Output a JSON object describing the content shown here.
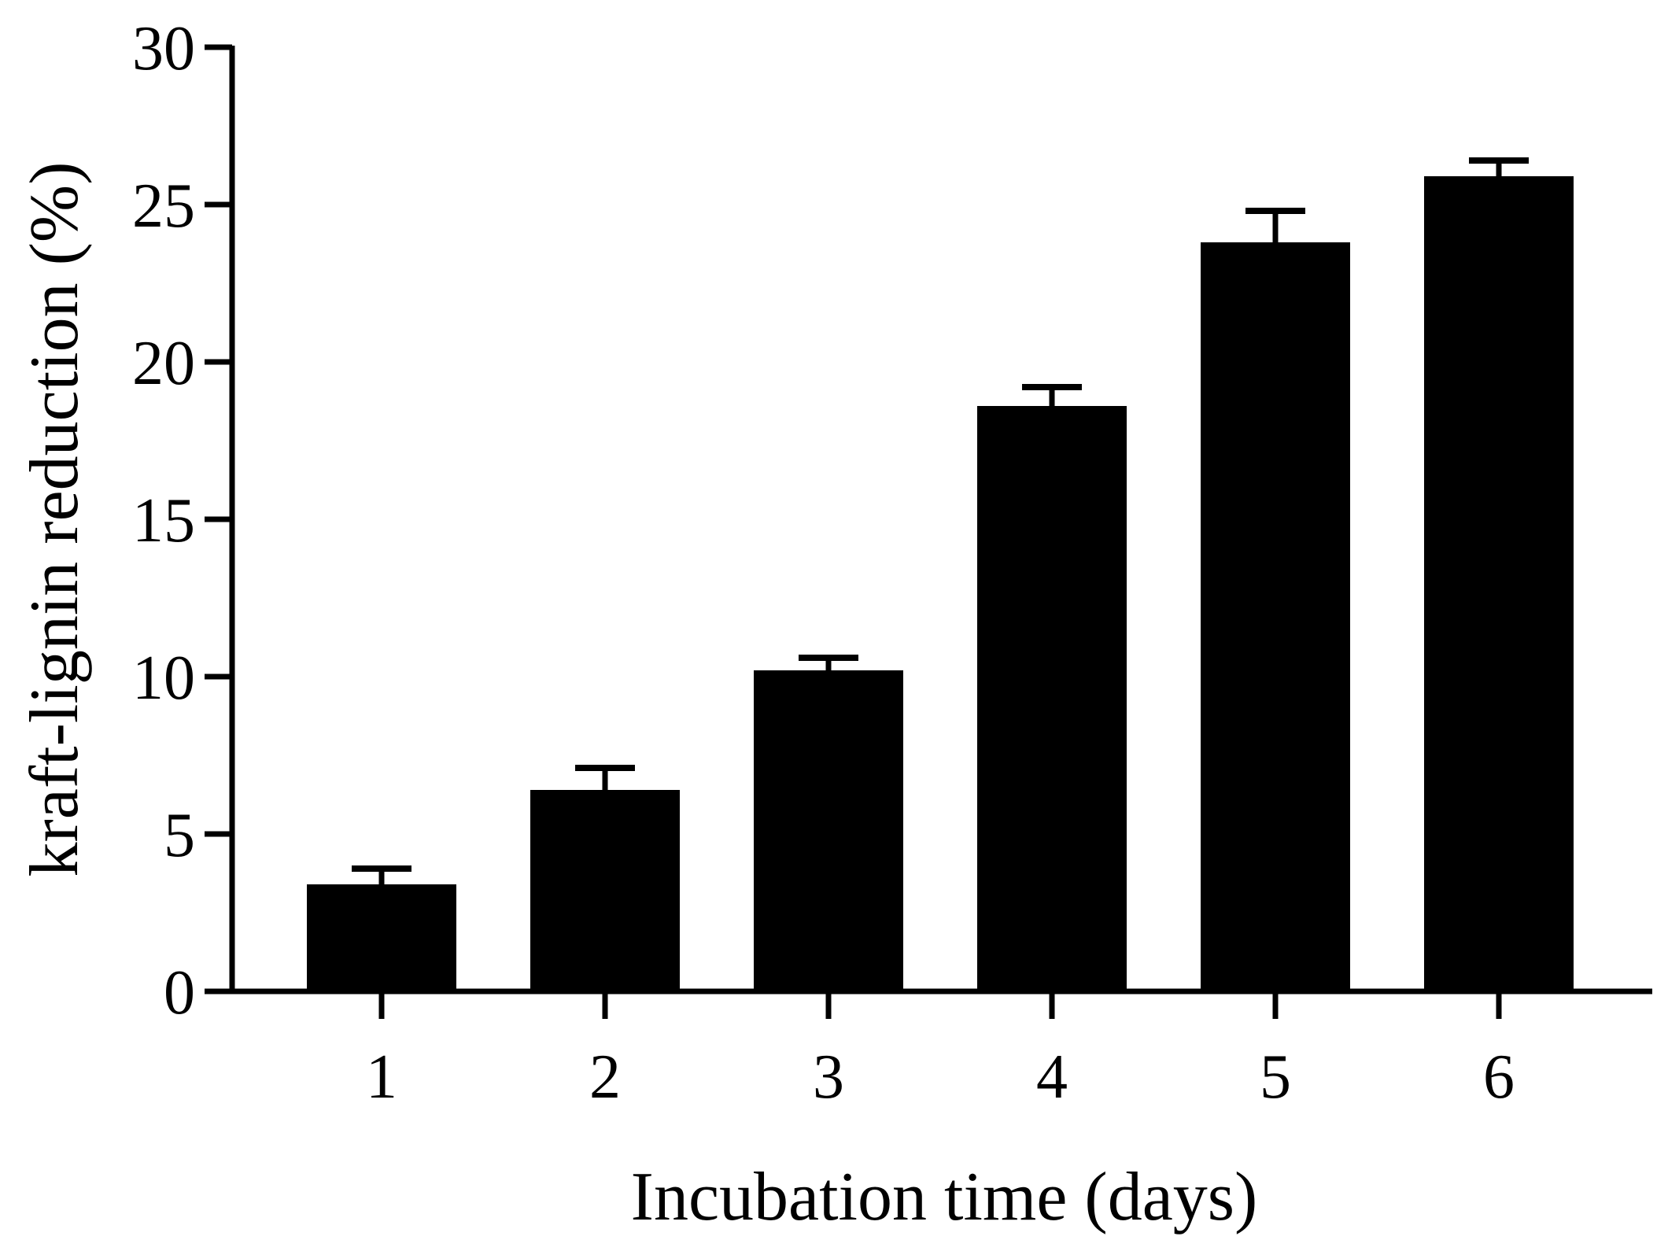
{
  "chart_data": {
    "type": "bar",
    "title": "",
    "xlabel": "Incubation time (days)",
    "ylabel": "kraft-lignin reduction (%)",
    "categories": [
      "1",
      "2",
      "3",
      "4",
      "5",
      "6"
    ],
    "values": [
      3.4,
      6.4,
      10.2,
      18.6,
      23.8,
      25.9
    ],
    "errors": [
      0.5,
      0.7,
      0.4,
      0.6,
      1.0,
      0.5
    ],
    "ylim": [
      0,
      30
    ],
    "yticks": [
      0,
      5,
      10,
      15,
      20,
      25,
      30
    ],
    "ytick_labels": [
      "0",
      "5",
      "10",
      "15",
      "20",
      "25",
      "30"
    ],
    "grid": false,
    "legend": "none",
    "bar_color": "#000000"
  }
}
